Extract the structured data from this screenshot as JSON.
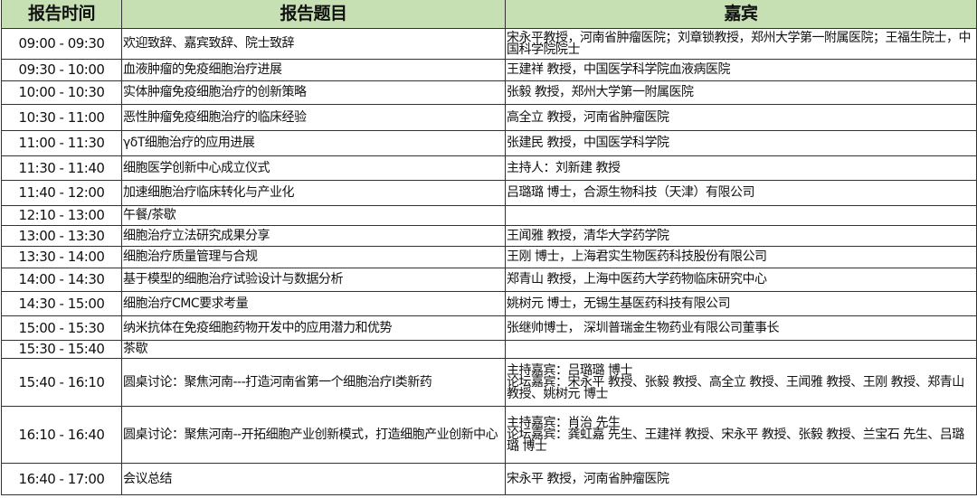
{
  "header": {
    "time": "报告时间",
    "topic": "报告题目",
    "guest": "嘉宾"
  },
  "rows": [
    {
      "time": "09:00 - 09:30",
      "topic": "欢迎致辞、嘉宾致辞、院士致辞",
      "guest": "宋永平教授，河南省肿瘤医院；刘章锁教授，郑州大学第一附属医院；王福生院士，中国科学院院士"
    },
    {
      "time": "09:30 - 10:00",
      "topic": "血液肿瘤的免疫细胞治疗进展",
      "guest": "王建祥 教授，中国医学科学院血液病医院"
    },
    {
      "time": "10:00 - 10:30",
      "topic": "实体肿瘤免疫细胞治疗的创新策略",
      "guest": "张毅 教授，郑州大学第一附属医院"
    },
    {
      "time": "10:30 - 11:00",
      "topic": "恶性肿瘤免疫细胞治疗的临床经验",
      "guest": "高全立 教授，河南省肿瘤医院"
    },
    {
      "time": "11:00 - 11:30",
      "topic": "γδT细胞治疗的应用进展",
      "guest": "张建民 教授，中国医学科学院"
    },
    {
      "time": "11:30 - 11:40",
      "topic": "细胞医学创新中心成立仪式",
      "guest": "主持人：刘新建 教授"
    },
    {
      "time": "11:40 - 12:00",
      "topic": "加速细胞治疗临床转化与产业化",
      "guest": "吕璐璐 博士，合源生物科技（天津）有限公司"
    },
    {
      "time": "12:10 - 13:00",
      "topic": "午餐/茶歇",
      "guest": ""
    },
    {
      "time": "13:00 - 13:30",
      "topic": "细胞治疗立法研究成果分享",
      "guest": "王闻雅 教授，清华大学药学院"
    },
    {
      "time": "13:30 - 14:00",
      "topic": "细胞治疗质量管理与合规",
      "guest": "王刚 博士，上海君实生物医药科技股份有限公司"
    },
    {
      "time": "14:00 - 14:30",
      "topic": "基于模型的细胞治疗试验设计与数据分析",
      "guest": "郑青山 教授，上海中医药大学药物临床研究中心"
    },
    {
      "time": "14:30 - 15:00",
      "topic": "细胞治疗CMC要求考量",
      "guest": "姚树元 博士，无锡生基医药科技有限公司"
    },
    {
      "time": "15:00 - 15:30",
      "topic": "纳米抗体在免疫细胞药物开发中的应用潜力和优势",
      "guest": "张继帅博士， 深圳普瑞金生物药业有限公司董事长"
    },
    {
      "time": "15:30 - 15:40",
      "topic": "茶歇",
      "guest": ""
    },
    {
      "time": "15:40 - 16:10",
      "topic": "圆桌讨论：聚焦河南---打造河南省第一个细胞治疗I类新药",
      "guest": "主持嘉宾：吕璐璐 博士\n论坛嘉宾：宋永平 教授、张毅 教授、高全立 教授、王闻雅 教授、王刚 教授、郑青山 教授、姚树元 博士"
    },
    {
      "time": "16:10 - 16:40",
      "topic": "圆桌讨论：聚焦河南--开拓细胞产业创新模式，打造细胞产业创新中心",
      "guest": "主持嘉宾：肖治 先生\n论坛嘉宾：龚虹嘉 先生、王建祥 教授、宋永平 教授、张毅 教授、兰宝石 先生、吕璐璐 博士"
    },
    {
      "time": "16:40 - 17:00",
      "topic": "会议总结",
      "guest": "宋永平 教授，河南省肿瘤医院"
    }
  ]
}
